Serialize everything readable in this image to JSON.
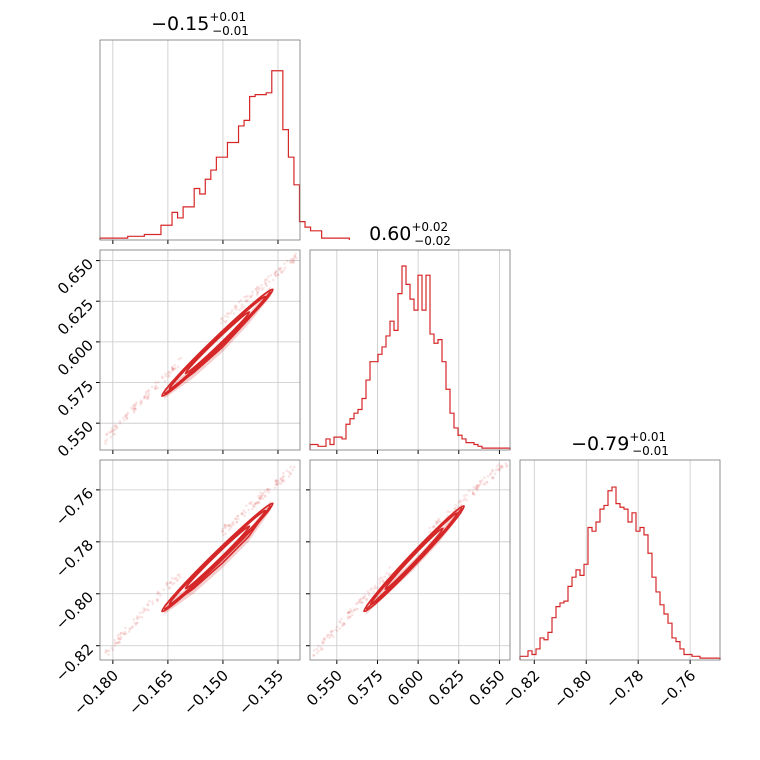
{
  "chart_data": {
    "type": "corner",
    "color": "#d62728",
    "grid": true,
    "parameters": [
      {
        "index": 0,
        "median": "−0.15",
        "plus": "+0.01",
        "minus": "−0.01",
        "range": [
          -0.1835,
          -0.129
        ],
        "ticks": [
          -0.18,
          -0.165,
          -0.15,
          -0.135
        ],
        "tick_labels": [
          "−0.180",
          "−0.165",
          "−0.150",
          "−0.135"
        ]
      },
      {
        "index": 1,
        "median": "0.60",
        "plus": "+0.02",
        "minus": "−0.02",
        "range": [
          0.5335,
          0.6565
        ],
        "ticks": [
          0.55,
          0.575,
          0.6,
          0.625,
          0.65
        ],
        "tick_labels": [
          "0.550",
          "0.575",
          "0.600",
          "0.625",
          "0.650"
        ]
      },
      {
        "index": 2,
        "median": "−0.79",
        "plus": "+0.01",
        "minus": "−0.01",
        "range": [
          -0.8255,
          -0.7485
        ],
        "ticks": [
          -0.82,
          -0.8,
          -0.78,
          -0.76
        ],
        "tick_labels": [
          "−0.82",
          "−0.80",
          "−0.78",
          "−0.76"
        ]
      }
    ],
    "histograms": [
      {
        "param": 0,
        "bin_start": -0.1835,
        "bin_width": 0.00151,
        "counts": [
          0.01,
          0.01,
          0.01,
          0.01,
          0.01,
          0.02,
          0.02,
          0.02,
          0.03,
          0.03,
          0.03,
          0.08,
          0.08,
          0.15,
          0.12,
          0.18,
          0.18,
          0.28,
          0.25,
          0.33,
          0.38,
          0.45,
          0.45,
          0.53,
          0.53,
          0.62,
          0.65,
          0.78,
          0.79,
          0.79,
          0.8,
          0.92,
          0.92,
          0.6,
          0.45,
          0.3,
          0.1,
          0.07,
          0.05,
          0.05,
          0.01,
          0.01,
          0.01,
          0.01,
          0.01
        ]
      },
      {
        "param": 1,
        "bin_start": 0.5335,
        "bin_width": 0.00246,
        "counts": [
          0.03,
          0.03,
          0.02,
          0.02,
          0.06,
          0.03,
          0.07,
          0.07,
          0.06,
          0.14,
          0.17,
          0.2,
          0.22,
          0.28,
          0.38,
          0.48,
          0.48,
          0.52,
          0.56,
          0.62,
          0.7,
          0.65,
          0.85,
          1.0,
          0.9,
          0.82,
          0.76,
          0.95,
          0.76,
          0.95,
          0.63,
          0.58,
          0.6,
          0.48,
          0.33,
          0.2,
          0.12,
          0.08,
          0.06,
          0.04,
          0.04,
          0.03,
          0.02,
          0.01,
          0.01,
          0.01,
          0.01,
          0.01,
          0.01,
          0.01
        ]
      },
      {
        "param": 2,
        "bin_start": -0.8255,
        "bin_width": 0.00154,
        "counts": [
          0.02,
          0.02,
          0.05,
          0.03,
          0.06,
          0.12,
          0.11,
          0.15,
          0.23,
          0.29,
          0.31,
          0.32,
          0.4,
          0.45,
          0.49,
          0.46,
          0.52,
          0.72,
          0.7,
          0.75,
          0.82,
          0.84,
          0.92,
          0.94,
          0.85,
          0.83,
          0.82,
          0.75,
          0.8,
          0.7,
          0.72,
          0.68,
          0.58,
          0.45,
          0.37,
          0.3,
          0.25,
          0.2,
          0.12,
          0.1,
          0.06,
          0.03,
          0.03,
          0.02,
          0.02,
          0.01,
          0.01,
          0.01,
          0.01,
          0.01
        ]
      }
    ],
    "pairs": [
      {
        "x_param": 0,
        "y_param": 1,
        "center": [
          -0.151,
          0.598
        ],
        "ridge": [
          [
            -0.166,
            0.568
          ],
          [
            -0.158,
            0.581
          ],
          [
            -0.15,
            0.597
          ],
          [
            -0.143,
            0.614
          ],
          [
            -0.137,
            0.631
          ]
        ],
        "scatter_extent": [
          [
            -0.182,
            0.54
          ],
          [
            -0.13,
            0.652
          ]
        ]
      },
      {
        "x_param": 0,
        "y_param": 2,
        "center": [
          -0.151,
          -0.79
        ],
        "ridge": [
          [
            -0.166,
            -0.806
          ],
          [
            -0.158,
            -0.798
          ],
          [
            -0.15,
            -0.788
          ],
          [
            -0.143,
            -0.778
          ],
          [
            -0.137,
            -0.766
          ]
        ],
        "scatter_extent": [
          [
            -0.182,
            -0.823
          ],
          [
            -0.13,
            -0.751
          ]
        ]
      },
      {
        "x_param": 1,
        "y_param": 2,
        "center": [
          0.598,
          -0.79
        ],
        "ridge": [
          [
            0.568,
            -0.806
          ],
          [
            0.58,
            -0.799
          ],
          [
            0.597,
            -0.789
          ],
          [
            0.612,
            -0.779
          ],
          [
            0.627,
            -0.767
          ]
        ],
        "scatter_extent": [
          [
            0.535,
            -0.824
          ],
          [
            0.655,
            -0.749
          ]
        ]
      }
    ]
  }
}
